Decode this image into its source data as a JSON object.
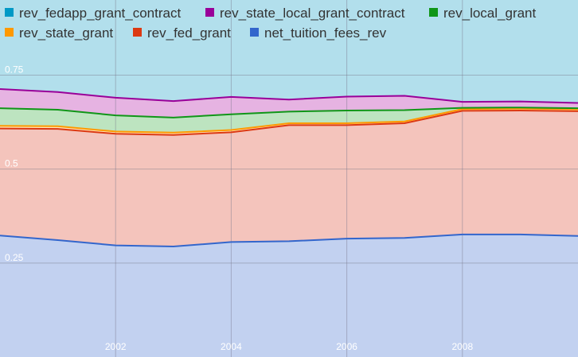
{
  "chart_data": {
    "type": "area",
    "stacked": true,
    "x": [
      2000,
      2001,
      2002,
      2003,
      2004,
      2005,
      2006,
      2007,
      2008,
      2009,
      2010
    ],
    "xlim": [
      2000,
      2010
    ],
    "ylim": [
      0,
      0.95
    ],
    "x_ticks": [
      2002,
      2004,
      2006,
      2008
    ],
    "x_tick_labels": [
      "2002",
      "2004",
      "2006",
      "2008"
    ],
    "y_ticks": [
      0.25,
      0.5,
      0.75
    ],
    "y_tick_labels": [
      "0.25",
      "0.5",
      "0.75"
    ],
    "grid": true,
    "legend_position": "top",
    "background_color": "#b2dfec",
    "series": [
      {
        "name": "net_tuition_fees_rev",
        "color": "#3366cc",
        "fill": "#c2d1f0",
        "values": [
          0.323,
          0.311,
          0.297,
          0.294,
          0.306,
          0.308,
          0.315,
          0.317,
          0.326,
          0.326,
          0.322
        ]
      },
      {
        "name": "rev_fed_grant",
        "color": "#dc3912",
        "fill": "#f4c4bc",
        "values": [
          0.285,
          0.296,
          0.297,
          0.297,
          0.292,
          0.309,
          0.302,
          0.305,
          0.329,
          0.33,
          0.332
        ]
      },
      {
        "name": "rev_state_grant",
        "color": "#ff9900",
        "fill": "#ffe3b8",
        "values": [
          0.007,
          0.007,
          0.006,
          0.006,
          0.006,
          0.005,
          0.005,
          0.005,
          0.005,
          0.005,
          0.005
        ]
      },
      {
        "name": "rev_local_grant",
        "color": "#109618",
        "fill": "#bde4c0",
        "values": [
          0.047,
          0.044,
          0.043,
          0.04,
          0.042,
          0.031,
          0.034,
          0.03,
          0.003,
          0.003,
          0.003
        ]
      },
      {
        "name": "rev_state_local_grant_contract",
        "color": "#990099",
        "fill": "#e6b3e2",
        "values": [
          0.051,
          0.047,
          0.047,
          0.044,
          0.046,
          0.032,
          0.037,
          0.038,
          0.016,
          0.016,
          0.014
        ]
      },
      {
        "name": "rev_fedapp_grant_contract",
        "color": "#0099c6",
        "fill": "#b8e2ef",
        "values": [
          0,
          0,
          0,
          0,
          0,
          0,
          0,
          0,
          0,
          0,
          0
        ]
      }
    ],
    "legend_order": [
      "rev_fedapp_grant_contract",
      "rev_state_local_grant_contract",
      "rev_local_grant",
      "rev_state_grant",
      "rev_fed_grant",
      "net_tuition_fees_rev"
    ]
  }
}
